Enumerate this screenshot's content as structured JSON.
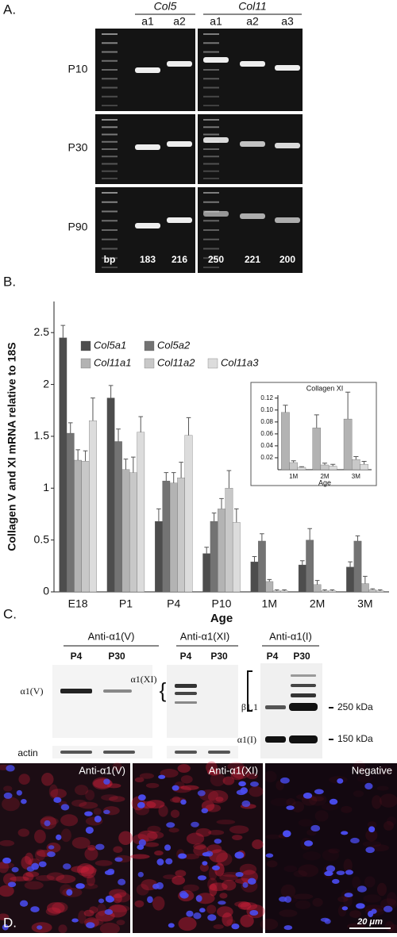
{
  "panel_a": {
    "label": "A.",
    "gene_headers": [
      "Col5",
      "Col11"
    ],
    "lanes": [
      "a1",
      "a2",
      "a1",
      "a2",
      "a3"
    ],
    "rows": [
      "P10",
      "P30",
      "P90"
    ],
    "bp_label": "bp",
    "sizes": [
      183,
      216,
      250,
      221,
      200
    ]
  },
  "panel_b_label": "B.",
  "chart_data": [
    {
      "type": "bar",
      "ylabel": "Collagen V and XI mRNA relative to 18S",
      "xlabel": "Age",
      "categories": [
        "E18",
        "P1",
        "P4",
        "P10",
        "1M",
        "2M",
        "3M"
      ],
      "series": [
        {
          "name": "Col5a1",
          "color": "#4d4d4d",
          "values": [
            2.45,
            1.87,
            0.68,
            0.37,
            0.29,
            0.26,
            0.24
          ],
          "errors": [
            0.12,
            0.12,
            0.12,
            0.06,
            0.05,
            0.04,
            0.05
          ]
        },
        {
          "name": "Col5a2",
          "color": "#737373",
          "values": [
            1.53,
            1.45,
            1.07,
            0.68,
            0.49,
            0.5,
            0.49
          ],
          "errors": [
            0.1,
            0.12,
            0.08,
            0.08,
            0.07,
            0.11,
            0.05
          ]
        },
        {
          "name": "Col11a1",
          "color": "#b3b3b3",
          "values": [
            1.27,
            1.18,
            1.05,
            0.8,
            0.1,
            0.07,
            0.08
          ],
          "errors": [
            0.1,
            0.1,
            0.1,
            0.1,
            0.02,
            0.04,
            0.07
          ]
        },
        {
          "name": "Col11a2",
          "color": "#c8c8c8",
          "values": [
            1.26,
            1.15,
            1.1,
            1.0,
            0.01,
            0.01,
            0.02
          ],
          "errors": [
            0.1,
            0.15,
            0.15,
            0.17,
            0.01,
            0.01,
            0.01
          ]
        },
        {
          "name": "Col11a3",
          "color": "#dcdcdc",
          "values": [
            1.65,
            1.54,
            1.51,
            0.67,
            0.01,
            0.01,
            0.01
          ],
          "errors": [
            0.22,
            0.15,
            0.17,
            0.13,
            0.01,
            0.01,
            0.01
          ]
        }
      ],
      "ylim": [
        0,
        2.8
      ],
      "yticks": [
        0,
        0.5,
        1,
        1.5,
        2,
        2.5
      ]
    },
    {
      "type": "bar",
      "title": "Collagen XI",
      "xlabel": "Age",
      "categories": [
        "1M",
        "2M",
        "3M"
      ],
      "series": [
        {
          "color": "#b3b3b3",
          "values": [
            0.096,
            0.07,
            0.085
          ],
          "errors": [
            0.012,
            0.022,
            0.045
          ]
        },
        {
          "color": "#c8c8c8",
          "values": [
            0.012,
            0.008,
            0.017
          ],
          "errors": [
            0.003,
            0.003,
            0.005
          ]
        },
        {
          "color": "#dcdcdc",
          "values": [
            0.004,
            0.006,
            0.009
          ],
          "errors": [
            0.001,
            0.003,
            0.005
          ]
        }
      ],
      "ylim": [
        0,
        0.125
      ],
      "yticks": [
        0.02,
        0.04,
        0.06,
        0.08,
        {
          "value": 0.1,
          "label": "0.10"
        },
        0.12
      ]
    }
  ],
  "panel_c": {
    "label": "C.",
    "blots": [
      {
        "antibody": "Anti-α1(V)",
        "lanes": [
          "P4",
          "P30"
        ],
        "band": "α1(V)",
        "loading": "actin"
      },
      {
        "antibody": "Anti-α1(XI)",
        "lanes": [
          "P4",
          "P30"
        ],
        "band": "α1(XI)"
      },
      {
        "antibody": "Anti-α1(I)",
        "lanes": [
          "P4",
          "P30"
        ],
        "bands": [
          "β1,1",
          "α1(I)"
        ],
        "markers": [
          "250 kDa",
          "150 kDa"
        ]
      }
    ]
  },
  "panel_d": {
    "label": "D.",
    "images": [
      "Anti-α1(V)",
      "Anti-α1(XI)",
      "Negative"
    ],
    "scale_bar": "20 μm"
  }
}
